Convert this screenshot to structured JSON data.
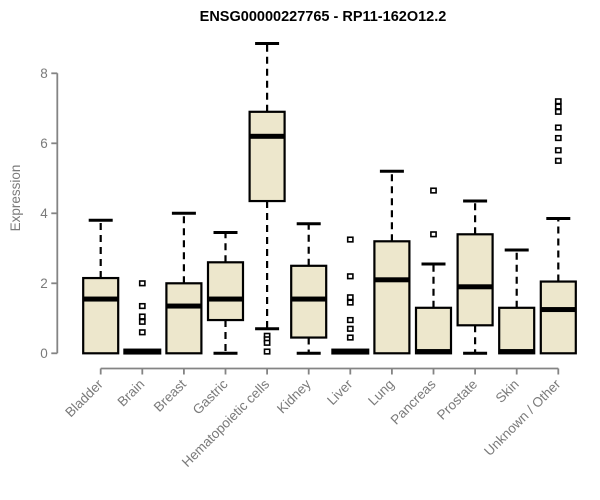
{
  "page": {
    "background": "#ffffff"
  },
  "chart_data": {
    "type": "boxplot",
    "title": "ENSG00000227765 - RP11-162O12.2",
    "ylabel": "Expression",
    "xlabel": "",
    "ylim": [
      0,
      8.9
    ],
    "yticks": [
      0,
      2,
      4,
      6,
      8
    ],
    "grid": false,
    "legend": "none",
    "categories": [
      "Bladder",
      "Brain",
      "Breast",
      "Gastric",
      "Hematopoietic cells",
      "Kidney",
      "Liver",
      "Lung",
      "Pancreas",
      "Prostate",
      "Skin",
      "Unknown / Other"
    ],
    "boxes": [
      {
        "category": "Bladder",
        "whisker_low": 0,
        "q1": 0,
        "median": 1.55,
        "q3": 2.15,
        "whisker_high": 3.8,
        "outliers": []
      },
      {
        "category": "Brain",
        "whisker_low": 0,
        "q1": 0,
        "median": 0.05,
        "q3": 0.1,
        "whisker_high": 0.1,
        "outliers": [
          2.0,
          1.35,
          1.05,
          0.9,
          0.6
        ]
      },
      {
        "category": "Breast",
        "whisker_low": 0,
        "q1": 0,
        "median": 1.35,
        "q3": 2.0,
        "whisker_high": 4.0,
        "outliers": []
      },
      {
        "category": "Gastric",
        "whisker_low": 0,
        "q1": 0.95,
        "median": 1.55,
        "q3": 2.6,
        "whisker_high": 3.45,
        "outliers": []
      },
      {
        "category": "Hematopoietic cells",
        "whisker_low": 0.7,
        "q1": 4.35,
        "median": 6.2,
        "q3": 6.9,
        "whisker_high": 8.85,
        "outliers": [
          0.5,
          0.4,
          0.3,
          0.05
        ]
      },
      {
        "category": "Kidney",
        "whisker_low": 0,
        "q1": 0.45,
        "median": 1.55,
        "q3": 2.5,
        "whisker_high": 3.7,
        "outliers": []
      },
      {
        "category": "Liver",
        "whisker_low": 0,
        "q1": 0,
        "median": 0.05,
        "q3": 0.1,
        "whisker_high": 0.1,
        "outliers": [
          3.25,
          2.2,
          1.6,
          1.45,
          0.95,
          0.7,
          0.45
        ]
      },
      {
        "category": "Lung",
        "whisker_low": 0,
        "q1": 0,
        "median": 2.1,
        "q3": 3.2,
        "whisker_high": 5.2,
        "outliers": []
      },
      {
        "category": "Pancreas",
        "whisker_low": 0,
        "q1": 0,
        "median": 0.05,
        "q3": 1.3,
        "whisker_high": 2.55,
        "outliers": [
          4.65,
          3.4
        ]
      },
      {
        "category": "Prostate",
        "whisker_low": 0,
        "q1": 0.8,
        "median": 1.9,
        "q3": 3.4,
        "whisker_high": 4.35,
        "outliers": []
      },
      {
        "category": "Skin",
        "whisker_low": 0,
        "q1": 0,
        "median": 0.05,
        "q3": 1.3,
        "whisker_high": 2.95,
        "outliers": []
      },
      {
        "category": "Unknown / Other",
        "whisker_low": 0,
        "q1": 0,
        "median": 1.25,
        "q3": 2.05,
        "whisker_high": 3.85,
        "outliers": [
          7.2,
          7.05,
          6.9,
          6.45,
          6.15,
          5.8,
          5.5
        ]
      }
    ],
    "colors": {
      "box_fill": "#EDE7CC",
      "box_stroke": "#000000",
      "median": "#000000",
      "whisker": "#000000",
      "outlier_stroke": "#000000",
      "outlier_fill": "#ffffff",
      "axis": "#848484",
      "tick_label": "#7a7a7a",
      "title": "#000000"
    }
  }
}
